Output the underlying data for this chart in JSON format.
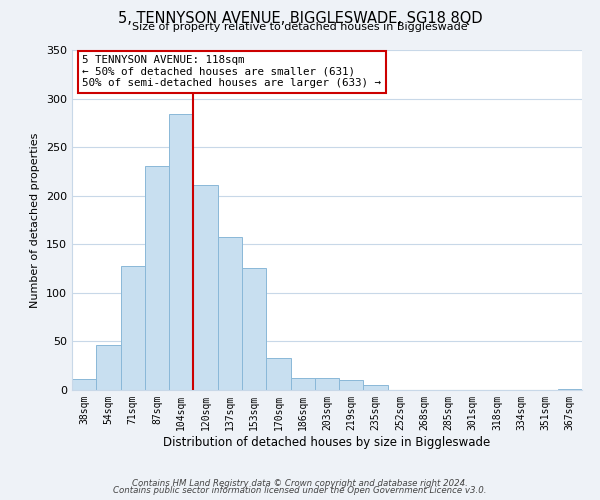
{
  "title": "5, TENNYSON AVENUE, BIGGLESWADE, SG18 8QD",
  "subtitle": "Size of property relative to detached houses in Biggleswade",
  "xlabel": "Distribution of detached houses by size in Biggleswade",
  "ylabel": "Number of detached properties",
  "bar_labels": [
    "38sqm",
    "54sqm",
    "71sqm",
    "87sqm",
    "104sqm",
    "120sqm",
    "137sqm",
    "153sqm",
    "170sqm",
    "186sqm",
    "203sqm",
    "219sqm",
    "235sqm",
    "252sqm",
    "268sqm",
    "285sqm",
    "301sqm",
    "318sqm",
    "334sqm",
    "351sqm",
    "367sqm"
  ],
  "bar_values": [
    11,
    46,
    128,
    231,
    284,
    211,
    157,
    126,
    33,
    12,
    12,
    10,
    5,
    0,
    0,
    0,
    0,
    0,
    0,
    0,
    1
  ],
  "bar_color": "#c8dff0",
  "bar_edge_color": "#8ab8d8",
  "vline_index": 5,
  "vline_color": "#cc0000",
  "annotation_line1": "5 TENNYSON AVENUE: 118sqm",
  "annotation_line2": "← 50% of detached houses are smaller (631)",
  "annotation_line3": "50% of semi-detached houses are larger (633) →",
  "annotation_box_color": "#ffffff",
  "annotation_box_edge": "#cc0000",
  "ylim": [
    0,
    350
  ],
  "yticks": [
    0,
    50,
    100,
    150,
    200,
    250,
    300,
    350
  ],
  "footer_line1": "Contains HM Land Registry data © Crown copyright and database right 2024.",
  "footer_line2": "Contains public sector information licensed under the Open Government Licence v3.0.",
  "bg_color": "#eef2f7",
  "plot_bg_color": "#ffffff",
  "grid_color": "#c8d8e8"
}
